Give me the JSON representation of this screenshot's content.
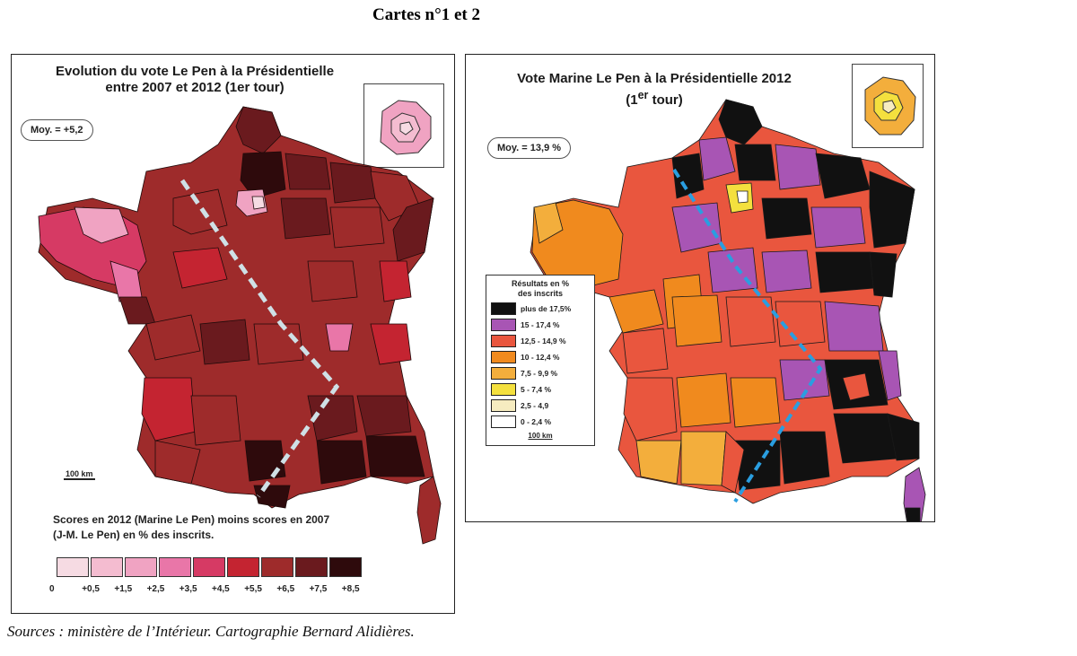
{
  "heading": "Cartes n°1 et 2",
  "map1": {
    "title_line1": "Evolution du vote Le Pen à la Présidentielle",
    "title_line2": "entre 2007  et 2012 (1er tour)",
    "average": "Moy. = +5,2",
    "scale": "100 km",
    "note_line1": "Scores en 2012 (Marine Le Pen) moins scores en 2007",
    "note_line2": "(J-M. Le Pen) en % des inscrits.",
    "legend_colors": [
      "#f6dbe3",
      "#f4bcd0",
      "#f0a3c2",
      "#e976a8",
      "#d63a64",
      "#c42431",
      "#9e2b2b",
      "#6a1a1e",
      "#2e0a0c"
    ],
    "legend_ticks": [
      "0",
      "+0,5",
      "+1,5",
      "+2,5",
      "+3,5",
      "+4,5",
      "+5,5",
      "+6,5",
      "+7,5",
      "+8,5"
    ]
  },
  "map2": {
    "title_line1": "Vote Marine Le Pen à la Présidentielle 2012",
    "title_line2_prefix": "(1",
    "title_line2_sup": "er",
    "title_line2_suffix": " tour)",
    "average": "Moy. = 13,9 %",
    "legend_title_line1": "Résultats en %",
    "legend_title_line2": "des inscrits",
    "legend": [
      {
        "label": "plus de 17,5%",
        "color": "#111111"
      },
      {
        "label": "15 - 17,4 %",
        "color": "#a855b4"
      },
      {
        "label": "12,5 - 14,9 %",
        "color": "#e9563e"
      },
      {
        "label": "10 - 12,4 %",
        "color": "#f08a1e"
      },
      {
        "label": "7,5 - 9,9 %",
        "color": "#f3ae3c"
      },
      {
        "label": "5 - 7,4 %",
        "color": "#f4e03e"
      },
      {
        "label": "2,5 - 4,9",
        "color": "#f6ecc0"
      },
      {
        "label": "0 - 2,4 %",
        "color": "#ffffff"
      }
    ],
    "scale": "100 km"
  },
  "sources": "Sources : ministère de l’Intérieur. Cartographie Bernard Alidières."
}
